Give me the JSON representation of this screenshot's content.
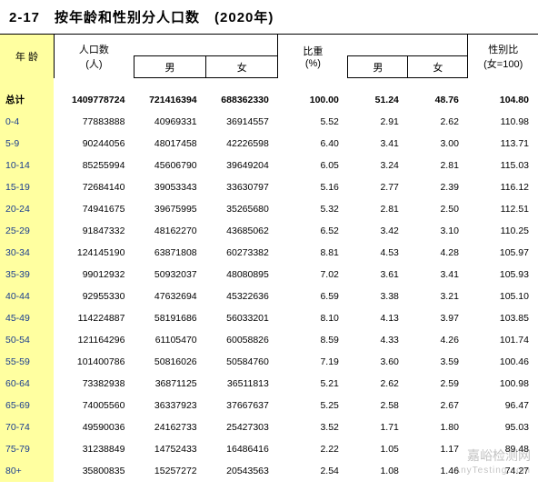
{
  "title": "2-17　按年龄和性别分人口数　(2020年)",
  "headers": {
    "age": "年 龄",
    "pop_total": "人口数",
    "pop_unit": "(人)",
    "male": "男",
    "female": "女",
    "pct": "比重",
    "pct_unit": "(%)",
    "ratio": "性别比",
    "ratio_unit": "(女=100)"
  },
  "rows": [
    {
      "age": "总计",
      "total": "1409778724",
      "male": "721416394",
      "female": "688362330",
      "pct": "100.00",
      "pm": "51.24",
      "pf": "48.76",
      "ratio": "104.80",
      "bold": true
    },
    {
      "age": "0-4",
      "total": "77883888",
      "male": "40969331",
      "female": "36914557",
      "pct": "5.52",
      "pm": "2.91",
      "pf": "2.62",
      "ratio": "110.98"
    },
    {
      "age": "5-9",
      "total": "90244056",
      "male": "48017458",
      "female": "42226598",
      "pct": "6.40",
      "pm": "3.41",
      "pf": "3.00",
      "ratio": "113.71"
    },
    {
      "age": "10-14",
      "total": "85255994",
      "male": "45606790",
      "female": "39649204",
      "pct": "6.05",
      "pm": "3.24",
      "pf": "2.81",
      "ratio": "115.03"
    },
    {
      "age": "15-19",
      "total": "72684140",
      "male": "39053343",
      "female": "33630797",
      "pct": "5.16",
      "pm": "2.77",
      "pf": "2.39",
      "ratio": "116.12"
    },
    {
      "age": "20-24",
      "total": "74941675",
      "male": "39675995",
      "female": "35265680",
      "pct": "5.32",
      "pm": "2.81",
      "pf": "2.50",
      "ratio": "112.51"
    },
    {
      "age": "25-29",
      "total": "91847332",
      "male": "48162270",
      "female": "43685062",
      "pct": "6.52",
      "pm": "3.42",
      "pf": "3.10",
      "ratio": "110.25"
    },
    {
      "age": "30-34",
      "total": "124145190",
      "male": "63871808",
      "female": "60273382",
      "pct": "8.81",
      "pm": "4.53",
      "pf": "4.28",
      "ratio": "105.97"
    },
    {
      "age": "35-39",
      "total": "99012932",
      "male": "50932037",
      "female": "48080895",
      "pct": "7.02",
      "pm": "3.61",
      "pf": "3.41",
      "ratio": "105.93"
    },
    {
      "age": "40-44",
      "total": "92955330",
      "male": "47632694",
      "female": "45322636",
      "pct": "6.59",
      "pm": "3.38",
      "pf": "3.21",
      "ratio": "105.10"
    },
    {
      "age": "45-49",
      "total": "114224887",
      "male": "58191686",
      "female": "56033201",
      "pct": "8.10",
      "pm": "4.13",
      "pf": "3.97",
      "ratio": "103.85"
    },
    {
      "age": "50-54",
      "total": "121164296",
      "male": "61105470",
      "female": "60058826",
      "pct": "8.59",
      "pm": "4.33",
      "pf": "4.26",
      "ratio": "101.74"
    },
    {
      "age": "55-59",
      "total": "101400786",
      "male": "50816026",
      "female": "50584760",
      "pct": "7.19",
      "pm": "3.60",
      "pf": "3.59",
      "ratio": "100.46"
    },
    {
      "age": "60-64",
      "total": "73382938",
      "male": "36871125",
      "female": "36511813",
      "pct": "5.21",
      "pm": "2.62",
      "pf": "2.59",
      "ratio": "100.98"
    },
    {
      "age": "65-69",
      "total": "74005560",
      "male": "36337923",
      "female": "37667637",
      "pct": "5.25",
      "pm": "2.58",
      "pf": "2.67",
      "ratio": "96.47"
    },
    {
      "age": "70-74",
      "total": "49590036",
      "male": "24162733",
      "female": "25427303",
      "pct": "3.52",
      "pm": "1.71",
      "pf": "1.80",
      "ratio": "95.03"
    },
    {
      "age": "75-79",
      "total": "31238849",
      "male": "14752433",
      "female": "16486416",
      "pct": "2.22",
      "pm": "1.05",
      "pf": "1.17",
      "ratio": "89.48"
    },
    {
      "age": "80+",
      "total": "35800835",
      "male": "15257272",
      "female": "20543563",
      "pct": "2.54",
      "pm": "1.08",
      "pf": "1.46",
      "ratio": "74.27"
    }
  ],
  "watermark": {
    "main": "嘉峪检测网",
    "sub": "AnyTesting.com"
  }
}
